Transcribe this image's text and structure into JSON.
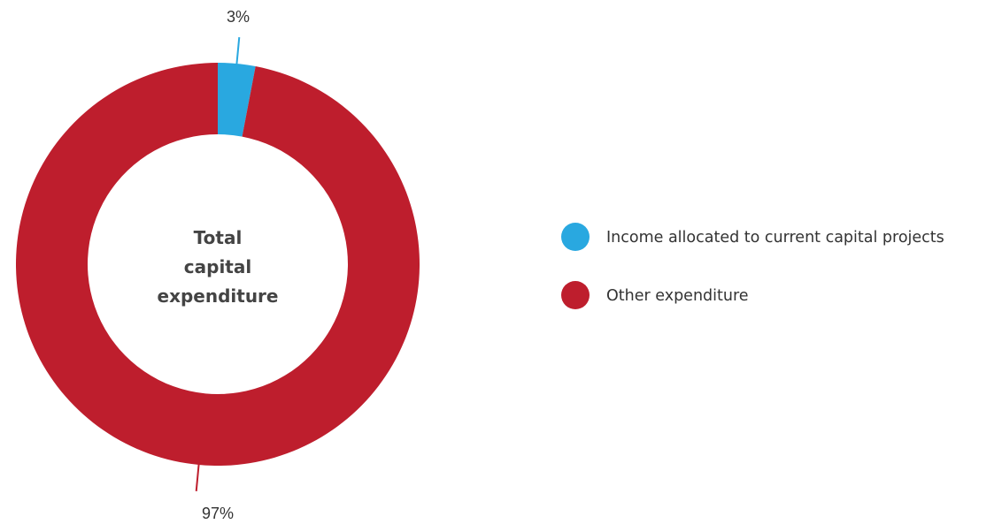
{
  "chart_data": {
    "type": "pie",
    "center_label": [
      "Total",
      "capital",
      "expenditure"
    ],
    "slices": [
      {
        "label": "Income allocated to current capital projects",
        "value": 3,
        "display": "3%",
        "color": "#29A8E0"
      },
      {
        "label": "Other expenditure",
        "value": 97,
        "display": "97%",
        "color": "#BE1E2D"
      }
    ],
    "legend_position": "right"
  }
}
